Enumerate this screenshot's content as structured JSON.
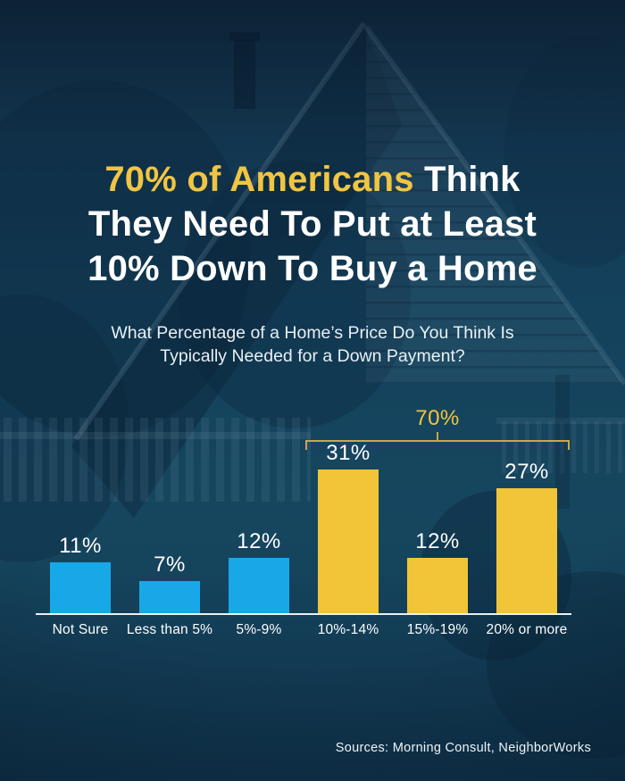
{
  "title": {
    "line1_highlight": "70% of Americans",
    "line1_rest": " Think",
    "line2": "They Need To Put at Least",
    "line3": "10% Down To Buy a Home"
  },
  "subtitle": {
    "line1": "What Percentage of a Home’s Price Do You Think Is",
    "line2": "Typically Needed for a Down Payment?"
  },
  "chart_data": {
    "type": "bar",
    "categories": [
      "Not Sure",
      "Less than 5%",
      "5%-9%",
      "10%-14%",
      "15%-19%",
      "20% or more"
    ],
    "values": [
      11,
      7,
      12,
      31,
      12,
      27
    ],
    "value_labels": [
      "11%",
      "7%",
      "12%",
      "31%",
      "12%",
      "27%"
    ],
    "bar_colors": [
      "#18A8E8",
      "#18A8E8",
      "#18A8E8",
      "#F2C437",
      "#F2C437",
      "#F2C437"
    ],
    "annotation": {
      "label": "70%",
      "from_category": "10%-14%",
      "to_category": "20% or more"
    },
    "title": "",
    "xlabel": "",
    "ylabel": "",
    "ylim": [
      0,
      35
    ],
    "grid": false,
    "legend": false
  },
  "footer": {
    "sources": "Sources: Morning Consult, NeighborWorks"
  },
  "colors": {
    "background": "#15435E",
    "title_highlight": "#F0C543",
    "title_text": "#FFFFFF",
    "subtitle_text": "#E8F0F5",
    "blue_bar": "#18A8E8",
    "yellow_bar": "#F2C437",
    "bracket": "#C9A847",
    "baseline": "#EAF1F5"
  }
}
